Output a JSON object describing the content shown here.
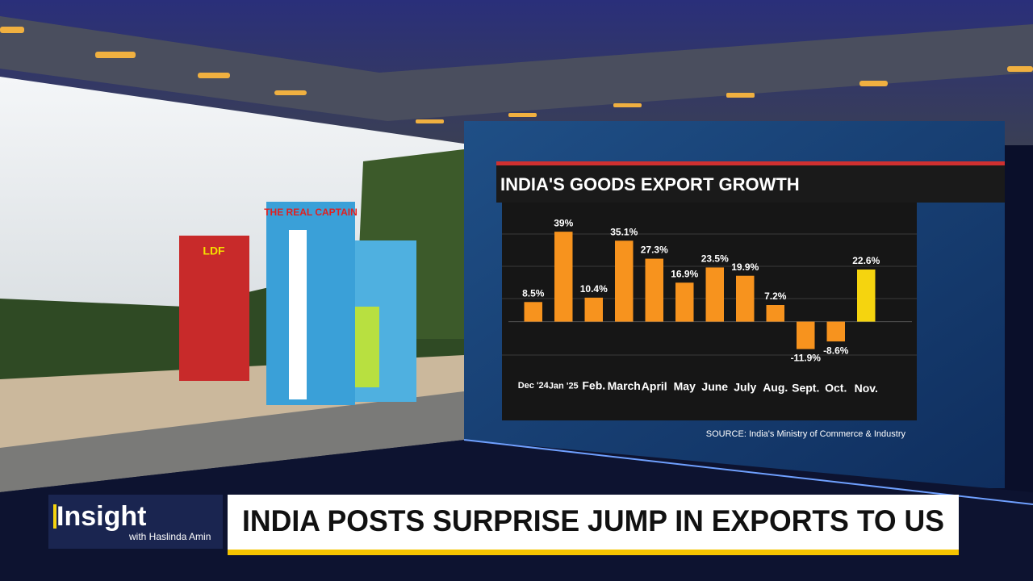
{
  "photo_texts": [
    "THE REAL CAPTAIN",
    "LDF"
  ],
  "chart_data": {
    "type": "bar",
    "title": "INDIA'S GOODS EXPORT GROWTH",
    "categories": [
      "Dec '24",
      "Jan '25",
      "Feb.",
      "March",
      "April",
      "May",
      "June",
      "July",
      "Aug.",
      "Sept.",
      "Oct.",
      "Nov."
    ],
    "values": [
      8.5,
      39,
      10.4,
      35.1,
      27.3,
      16.9,
      23.5,
      19.9,
      7.2,
      -11.9,
      -8.6,
      22.6
    ],
    "value_labels": [
      "8.5%",
      "39%",
      "10.4%",
      "35.1%",
      "27.3%",
      "16.9%",
      "23.5%",
      "19.9%",
      "7.2%",
      "-11.9%",
      "-8.6%",
      "22.6%"
    ],
    "colors": [
      "#f7931e",
      "#f7931e",
      "#f7931e",
      "#f7931e",
      "#f7931e",
      "#f7931e",
      "#f7931e",
      "#f7931e",
      "#f7931e",
      "#f7931e",
      "#f7931e",
      "#f5d40f"
    ],
    "ylim": [
      -25,
      45
    ],
    "source": "SOURCE: India's Ministry of Commerce & Industry"
  },
  "lower_third": {
    "show": "Insight",
    "host": "with Haslinda Amin",
    "headline": "INDIA POSTS SURPRISE JUMP IN EXPORTS TO US"
  }
}
